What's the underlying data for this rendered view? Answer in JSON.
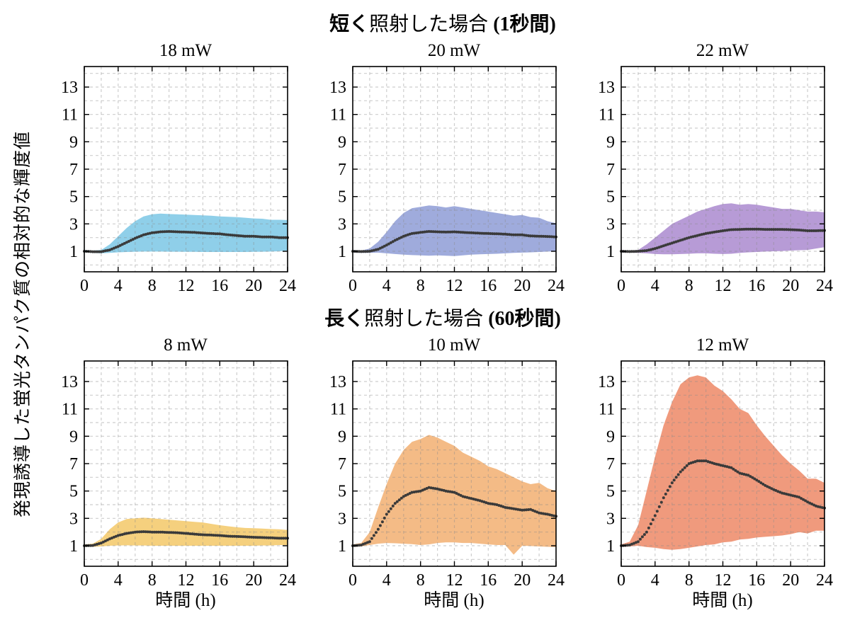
{
  "figure": {
    "ylabel": "発現誘導した蛍光タンパク質の相対的な輝度値",
    "xlabel": "時間 (h)"
  },
  "chart_data": {
    "type": "line",
    "description": "2x3 grid of subplots; each shows a dotted mean curve with an opaque shaded min-max band over 24 hours",
    "x": [
      0,
      1,
      2,
      3,
      4,
      5,
      6,
      7,
      8,
      9,
      10,
      11,
      12,
      13,
      14,
      15,
      16,
      17,
      18,
      19,
      20,
      21,
      22,
      23,
      24
    ],
    "x_ticks": [
      0,
      4,
      8,
      12,
      16,
      20,
      24
    ],
    "y_ticks": [
      1,
      3,
      5,
      7,
      9,
      11,
      13
    ],
    "xlim": [
      0,
      24
    ],
    "ylim": [
      -0.5,
      14.5
    ],
    "grid": "dashed light-gray, horizontal every 1 unit (0-14), vertical every 2 h",
    "legend": "none",
    "xlabel": "時間 (h)",
    "ylabel": "発現誘導した蛍光タンパク質の相対的な輝度値",
    "dot_color": "#3A3A3A",
    "rows": [
      {
        "title_bold_prefix": "短く",
        "title_normal": "照射した場合 ",
        "title_bold_suffix": "(1秒間)"
      },
      {
        "title_bold_prefix": "長く",
        "title_normal": "照射した場合 ",
        "title_bold_suffix": "(60秒間)"
      }
    ],
    "subplots": [
      {
        "title": "18 mW",
        "row": 0,
        "band_color": "#8FCFE9",
        "mean": [
          1.0,
          0.97,
          0.97,
          1.1,
          1.35,
          1.65,
          1.95,
          2.2,
          2.35,
          2.42,
          2.45,
          2.42,
          2.4,
          2.38,
          2.33,
          2.3,
          2.27,
          2.2,
          2.15,
          2.1,
          2.1,
          2.05,
          2.05,
          2.0,
          2.0
        ],
        "upper": [
          1.1,
          1.05,
          1.1,
          1.5,
          2.1,
          2.7,
          3.2,
          3.55,
          3.7,
          3.75,
          3.72,
          3.7,
          3.68,
          3.65,
          3.62,
          3.6,
          3.55,
          3.52,
          3.5,
          3.45,
          3.4,
          3.38,
          3.3,
          3.3,
          3.28
        ],
        "lower": [
          0.92,
          0.88,
          0.85,
          0.88,
          0.92,
          0.95,
          0.97,
          0.98,
          0.98,
          0.98,
          0.97,
          0.97,
          0.96,
          0.96,
          0.95,
          0.95,
          0.95,
          0.95,
          0.95,
          0.95,
          0.96,
          0.97,
          0.98,
          1.0,
          1.05
        ]
      },
      {
        "title": "20 mW",
        "row": 0,
        "band_color": "#9FABDC",
        "mean": [
          1.0,
          0.98,
          1.0,
          1.15,
          1.45,
          1.8,
          2.1,
          2.3,
          2.38,
          2.45,
          2.42,
          2.4,
          2.42,
          2.38,
          2.35,
          2.32,
          2.3,
          2.28,
          2.25,
          2.2,
          2.2,
          2.12,
          2.1,
          2.08,
          2.05
        ],
        "upper": [
          1.1,
          1.05,
          1.2,
          1.7,
          2.4,
          3.2,
          3.8,
          4.15,
          4.25,
          4.35,
          4.3,
          4.2,
          4.3,
          4.2,
          4.1,
          4.0,
          3.9,
          3.8,
          3.7,
          3.6,
          3.65,
          3.5,
          3.45,
          3.2,
          3.05
        ],
        "lower": [
          0.9,
          0.88,
          0.88,
          0.9,
          0.85,
          0.8,
          0.75,
          0.72,
          0.7,
          0.68,
          0.7,
          0.68,
          0.65,
          0.7,
          0.75,
          0.78,
          0.8,
          0.82,
          0.85,
          0.88,
          0.9,
          0.92,
          0.95,
          0.98,
          1.0
        ]
      },
      {
        "title": "22 mW",
        "row": 0,
        "band_color": "#B79BD6",
        "mean": [
          1.0,
          0.98,
          1.0,
          1.05,
          1.2,
          1.4,
          1.6,
          1.8,
          2.0,
          2.15,
          2.3,
          2.4,
          2.5,
          2.58,
          2.6,
          2.62,
          2.62,
          2.6,
          2.6,
          2.6,
          2.58,
          2.55,
          2.5,
          2.5,
          2.52
        ],
        "upper": [
          1.1,
          1.05,
          1.1,
          1.5,
          2.0,
          2.5,
          3.0,
          3.3,
          3.6,
          3.9,
          4.1,
          4.3,
          4.45,
          4.5,
          4.4,
          4.45,
          4.4,
          4.3,
          4.2,
          4.1,
          4.1,
          4.0,
          3.9,
          3.9,
          3.85
        ],
        "lower": [
          0.9,
          0.9,
          0.88,
          0.85,
          0.8,
          0.78,
          0.78,
          0.8,
          0.82,
          0.85,
          0.85,
          0.82,
          0.8,
          0.82,
          0.88,
          0.92,
          0.95,
          0.98,
          1.0,
          1.02,
          1.05,
          1.08,
          1.1,
          1.2,
          1.3
        ]
      },
      {
        "title": "8 mW",
        "row": 1,
        "band_color": "#F5D07E",
        "mean": [
          1.0,
          1.02,
          1.2,
          1.5,
          1.75,
          1.9,
          2.0,
          2.03,
          2.0,
          2.0,
          1.97,
          1.95,
          1.9,
          1.85,
          1.8,
          1.78,
          1.75,
          1.7,
          1.68,
          1.65,
          1.62,
          1.6,
          1.58,
          1.55,
          1.55
        ],
        "upper": [
          1.1,
          1.15,
          1.5,
          2.2,
          2.7,
          2.95,
          3.0,
          3.05,
          3.0,
          2.95,
          2.9,
          2.85,
          2.8,
          2.75,
          2.7,
          2.6,
          2.5,
          2.42,
          2.35,
          2.3,
          2.28,
          2.25,
          2.22,
          2.2,
          2.15
        ],
        "lower": [
          0.92,
          0.92,
          0.95,
          1.0,
          1.02,
          1.03,
          1.02,
          1.02,
          1.0,
          1.0,
          1.0,
          1.0,
          1.0,
          1.0,
          1.0,
          1.0,
          1.0,
          1.0,
          1.0,
          1.0,
          1.0,
          1.02,
          1.02,
          1.05,
          1.05
        ]
      },
      {
        "title": "10 mW",
        "row": 1,
        "band_color": "#F4BB86",
        "mean": [
          1.0,
          1.05,
          1.3,
          2.2,
          3.3,
          4.1,
          4.6,
          4.9,
          5.0,
          5.25,
          5.15,
          5.0,
          4.9,
          4.6,
          4.45,
          4.3,
          4.1,
          4.0,
          3.8,
          3.7,
          3.6,
          3.65,
          3.4,
          3.3,
          3.15
        ],
        "upper": [
          1.1,
          1.2,
          2.0,
          3.8,
          5.5,
          7.0,
          8.0,
          8.6,
          8.8,
          9.1,
          8.9,
          8.6,
          8.3,
          7.8,
          7.5,
          7.2,
          6.8,
          6.6,
          6.3,
          6.0,
          5.7,
          5.5,
          5.6,
          5.2,
          5.0
        ],
        "lower": [
          0.92,
          0.95,
          1.05,
          1.15,
          1.2,
          1.18,
          1.15,
          1.12,
          1.05,
          1.1,
          1.2,
          1.25,
          1.25,
          1.2,
          1.2,
          1.15,
          1.1,
          1.05,
          1.05,
          0.35,
          1.0,
          0.98,
          0.95,
          0.92,
          0.9
        ]
      },
      {
        "title": "12 mW",
        "row": 1,
        "band_color": "#F09A7D",
        "mean": [
          1.0,
          1.05,
          1.3,
          2.0,
          3.2,
          4.5,
          5.6,
          6.4,
          7.0,
          7.2,
          7.2,
          7.0,
          6.85,
          6.7,
          6.3,
          6.15,
          5.8,
          5.4,
          5.1,
          4.85,
          4.7,
          4.55,
          4.2,
          3.9,
          3.75
        ],
        "upper": [
          1.1,
          1.3,
          2.5,
          5.0,
          7.5,
          9.8,
          11.5,
          12.8,
          13.3,
          13.45,
          13.3,
          12.7,
          12.3,
          11.7,
          11.0,
          10.7,
          9.8,
          9.0,
          8.3,
          7.6,
          7.0,
          6.5,
          5.9,
          5.9,
          5.6
        ],
        "lower": [
          0.92,
          0.95,
          1.0,
          0.9,
          0.85,
          0.75,
          0.7,
          0.75,
          0.85,
          0.95,
          1.05,
          1.1,
          1.25,
          1.3,
          1.45,
          1.5,
          1.6,
          1.65,
          1.7,
          1.75,
          1.85,
          2.0,
          1.9,
          2.1,
          2.1
        ]
      }
    ]
  }
}
